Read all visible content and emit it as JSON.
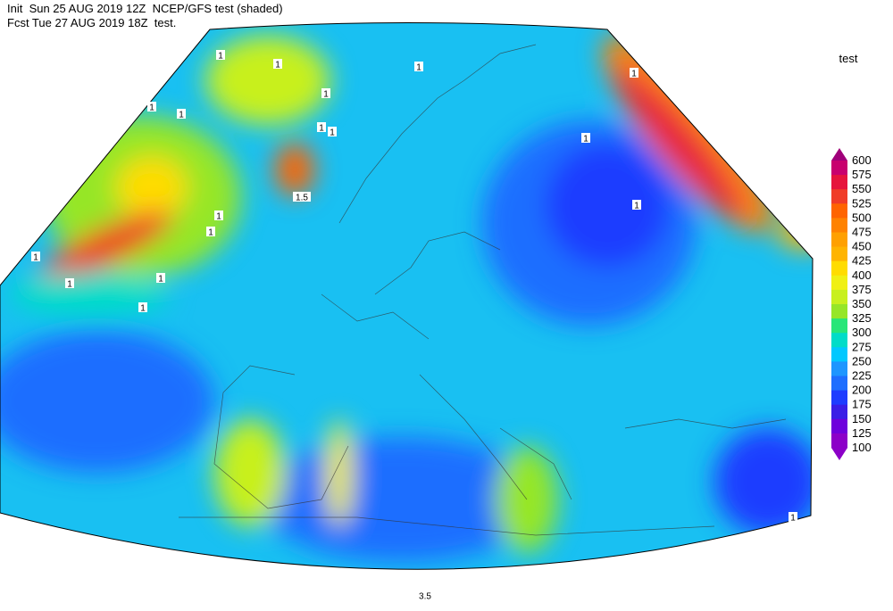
{
  "header": {
    "line1": "Init  Sun 25 AUG 2019 12Z  NCEP/GFS test (shaded)",
    "line2": "Fcst Tue 27 AUG 2019 18Z  test."
  },
  "legend": {
    "title": "test",
    "levels": [
      600,
      575,
      550,
      525,
      500,
      475,
      450,
      425,
      400,
      375,
      350,
      325,
      300,
      275,
      250,
      225,
      200,
      175,
      150,
      125,
      100
    ],
    "colors": [
      "#a0007a",
      "#c8006e",
      "#e6143c",
      "#f03c28",
      "#ff6400",
      "#ff8200",
      "#ffa000",
      "#ffb400",
      "#ffdc00",
      "#f0f014",
      "#c8f01e",
      "#96e628",
      "#28e678",
      "#00dcc8",
      "#00c8ff",
      "#1e96ff",
      "#1e6eff",
      "#1e3cff",
      "#3a1ee6",
      "#6e00dc",
      "#8c00c8",
      "#8c00c8"
    ]
  },
  "contour_labels": [
    "1",
    "1",
    "1",
    "1",
    "1",
    "1",
    "1",
    "1",
    "1",
    "1",
    "1",
    "1",
    "1",
    "1",
    "1",
    "1",
    "1",
    "1",
    "1.5",
    "3.5"
  ]
}
